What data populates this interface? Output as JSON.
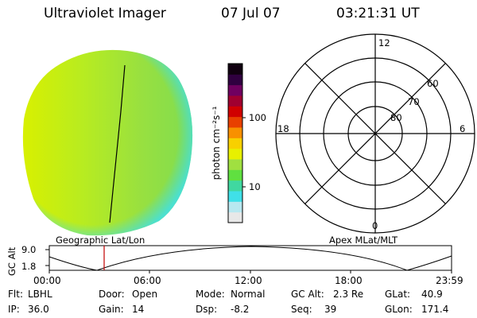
{
  "header": {
    "title": "Ultraviolet Imager",
    "date": "07 Jul 07",
    "time": "03:21:31 UT"
  },
  "colorbar": {
    "label": "photon cm⁻²s⁻¹",
    "ticks": [
      "100",
      "10"
    ],
    "colors": [
      "#e8e8e8",
      "#b8e8f0",
      "#40e0e8",
      "#40d8a0",
      "#60e040",
      "#a0e040",
      "#e8f000",
      "#f8d000",
      "#f89000",
      "#e84000",
      "#d00000",
      "#a00030",
      "#700060",
      "#300040",
      "#100010"
    ]
  },
  "polar": {
    "mlt_labels": {
      "top": "12",
      "left": "18",
      "right": "6",
      "bottom": "0"
    },
    "lat_labels": [
      "60",
      "70",
      "80"
    ]
  },
  "globe": {
    "colors": {
      "main": "#a0e040",
      "left": "#d8f000",
      "limb": "#40e0e8",
      "terminator": "#000000"
    }
  },
  "timeline": {
    "left_label": "Geographic Lat/Lon",
    "right_label": "Apex MLat/MLT",
    "ylabel": "GC Alt",
    "y_ticks": [
      "9.0",
      "1.8"
    ],
    "x_ticks": [
      "00:00",
      "06:00",
      "12:00",
      "18:00",
      "23:59"
    ],
    "marker_color": "#c00000"
  },
  "status": {
    "row1": [
      {
        "key": "Flt:",
        "value": "LBHL"
      },
      {
        "key": "Door:",
        "value": "Open"
      },
      {
        "key": "Mode:",
        "value": "Normal"
      },
      {
        "key": "GC Alt:",
        "value": "2.3 Re"
      },
      {
        "key": "GLat:",
        "value": "40.9"
      }
    ],
    "row2": [
      {
        "key": "IP:",
        "value": "36.0"
      },
      {
        "key": "Gain:",
        "value": "14"
      },
      {
        "key": "Dsp:",
        "value": "-8.2"
      },
      {
        "key": "Seq:",
        "value": "39"
      },
      {
        "key": "GLon:",
        "value": "171.4"
      }
    ]
  }
}
